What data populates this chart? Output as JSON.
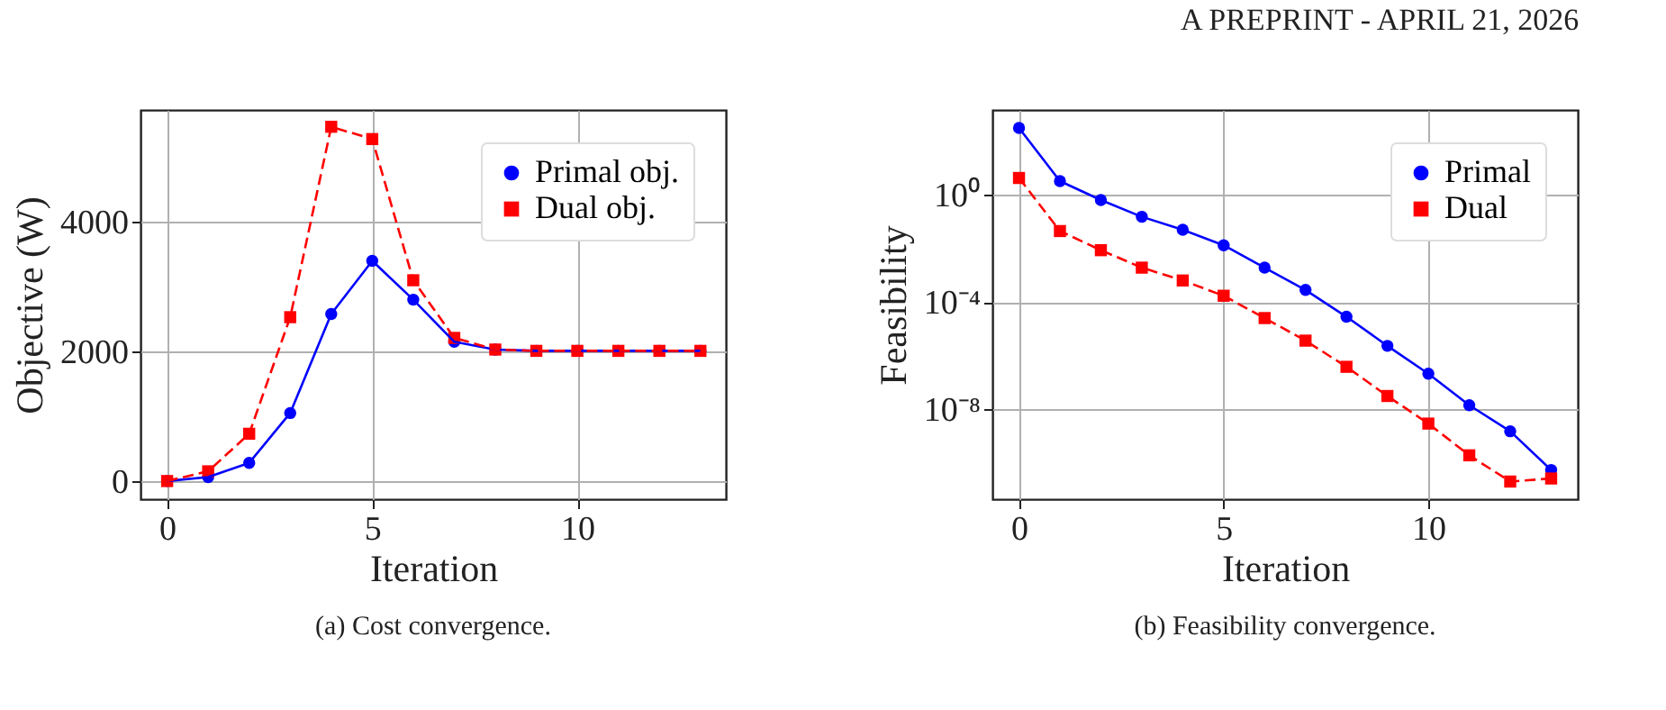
{
  "chart_data": [
    {
      "type": "line",
      "title": "(a) Cost convergence.",
      "annotations": [
        "A PREPRINT - APRIL 21, 2026"
      ],
      "xlabel": "Iteration",
      "ylabel": "Objective (W)",
      "x": [
        0,
        1,
        2,
        3,
        4,
        5,
        6,
        7,
        8,
        9,
        10,
        11,
        12,
        13
      ],
      "series": [
        {
          "name": "Primal obj.",
          "color": "#0000ff",
          "marker": "circle",
          "line_style": "solid",
          "values": [
            0,
            60,
            280,
            1050,
            2580,
            3400,
            2800,
            2150,
            2030,
            2010,
            2010,
            2010,
            2010,
            2010
          ]
        },
        {
          "name": "Dual obj.",
          "color": "#ff0000",
          "marker": "square",
          "line_style": "dashed",
          "values": [
            0,
            150,
            730,
            2530,
            5470,
            5280,
            3100,
            2210,
            2030,
            2010,
            2010,
            2010,
            2010,
            2010
          ]
        }
      ],
      "xlim": [
        -0.65,
        13.62
      ],
      "xticks": [
        0,
        5,
        10
      ],
      "ylim": [
        -280,
        5730
      ],
      "yticks": [
        0,
        2000,
        4000
      ],
      "grid": true,
      "legend": "top right"
    },
    {
      "type": "line",
      "title": "(b) Feasibility convergence.",
      "xlabel": "Iteration",
      "ylabel": "Feasibility",
      "x": [
        0,
        1,
        2,
        3,
        4,
        5,
        6,
        7,
        8,
        9,
        10,
        11,
        12,
        13
      ],
      "series": [
        {
          "name": "Primal",
          "color": "#0000ff",
          "marker": "circle",
          "line_style": "solid",
          "values": [
            310,
            3.2,
            0.63,
            0.15,
            0.049,
            0.013,
            0.0019,
            0.00028,
            2.8e-05,
            2.3e-06,
            2.1e-07,
            1.4e-08,
            1.5e-09,
            5.4e-11
          ]
        },
        {
          "name": "Dual",
          "color": "#ff0000",
          "marker": "square",
          "line_style": "dashed",
          "values": [
            4.2,
            0.044,
            0.0085,
            0.0019,
            0.00063,
            0.00017,
            2.5e-05,
            3.6e-06,
            3.8e-07,
            3.1e-08,
            2.9e-09,
            1.9e-10,
            2e-11,
            2.6e-11
          ]
        }
      ],
      "xlim": [
        -0.65,
        13.65
      ],
      "xticks": [
        0,
        5,
        10
      ],
      "ylim": [
        4.4e-12,
        1450
      ],
      "yticks": [
        {
          "value": 1,
          "label": "10⁰"
        },
        {
          "value": 0.0001,
          "label": "10⁻⁴"
        },
        {
          "value": 1e-08,
          "label": "10⁻⁸"
        }
      ],
      "log": true,
      "grid": true,
      "legend": "top right"
    }
  ]
}
